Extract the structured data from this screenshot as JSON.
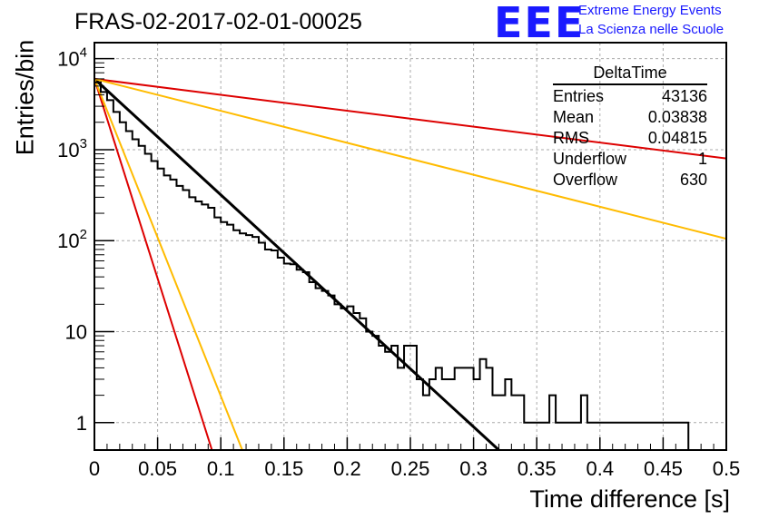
{
  "header": {
    "title": "FRAS-02-2017-02-01-00025",
    "logo_text": "EEE",
    "logo_line1": "Extreme Energy Events",
    "logo_line2": "La Scienza nelle Scuole"
  },
  "stats": {
    "title": "DeltaTime",
    "rows": [
      {
        "label": "Entries",
        "value": "43136"
      },
      {
        "label": "Mean",
        "value": "0.03838"
      },
      {
        "label": "RMS",
        "value": "0.04815"
      },
      {
        "label": "Underflow",
        "value": "1"
      },
      {
        "label": "Overflow",
        "value": "630"
      }
    ]
  },
  "colors": {
    "histogram": "#000000",
    "fit": "#000000",
    "red_band": "#dd0000",
    "yellow_band": "#ffbb00",
    "grid": "#aaaaaa"
  },
  "chart_data": {
    "type": "line",
    "xlabel": "Time difference [s]",
    "ylabel": "Entries/bin",
    "xlim": [
      0,
      0.5
    ],
    "ylim": [
      0.5,
      15000
    ],
    "yscale": "log",
    "grid": true,
    "x_ticks": [
      "0",
      "0.05",
      "0.1",
      "0.15",
      "0.2",
      "0.25",
      "0.3",
      "0.35",
      "0.4",
      "0.45",
      "0.5"
    ],
    "y_ticks": [
      "1",
      "10",
      "10^2",
      "10^3",
      "10^4"
    ],
    "histogram": {
      "name": "DeltaTime",
      "bin_width": 0.005,
      "values": [
        5500,
        4300,
        3500,
        2600,
        2000,
        1600,
        1300,
        1100,
        900,
        750,
        620,
        520,
        470,
        400,
        360,
        300,
        270,
        250,
        230,
        180,
        160,
        150,
        130,
        120,
        115,
        110,
        95,
        80,
        78,
        65,
        56,
        55,
        48,
        45,
        35,
        30,
        28,
        25,
        20,
        18,
        19,
        16,
        14,
        10,
        9,
        7,
        6,
        7,
        4,
        7,
        7,
        3,
        2,
        3,
        4,
        3,
        3,
        4,
        4,
        4,
        3,
        5,
        4,
        2,
        2,
        3,
        2,
        2,
        1,
        1,
        1,
        1,
        2,
        1,
        1,
        1,
        1,
        2,
        1,
        1,
        1,
        1,
        1,
        1,
        1,
        1,
        1,
        1,
        1,
        1,
        1,
        1,
        1,
        1,
        0,
        0,
        0,
        0,
        0,
        0
      ]
    },
    "lines": [
      {
        "role": "fit",
        "color": "#000000",
        "points": [
          [
            0,
            6000
          ],
          [
            0.32,
            0.5
          ]
        ]
      },
      {
        "role": "red_band_fast",
        "color": "#dd0000",
        "points": [
          [
            0,
            6000
          ],
          [
            0.093,
            0.5
          ]
        ]
      },
      {
        "role": "yellow_band_fast",
        "color": "#ffbb00",
        "points": [
          [
            0,
            6000
          ],
          [
            0.117,
            0.5
          ]
        ]
      },
      {
        "role": "red_band_slow",
        "color": "#dd0000",
        "points": [
          [
            0,
            6000
          ],
          [
            0.5,
            800
          ]
        ]
      },
      {
        "role": "yellow_band_slow",
        "color": "#ffbb00",
        "points": [
          [
            0,
            6000
          ],
          [
            0.5,
            105
          ]
        ]
      }
    ]
  }
}
